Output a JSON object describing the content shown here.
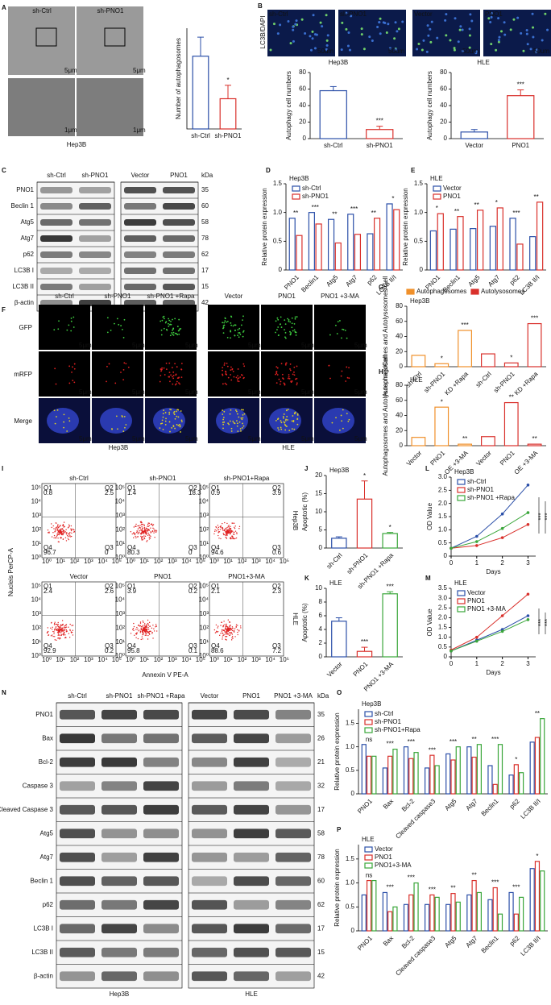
{
  "figure": {
    "panel_letters": [
      "A",
      "B",
      "C",
      "D",
      "E",
      "F",
      "G",
      "H",
      "I",
      "J",
      "K",
      "L",
      "M",
      "N",
      "O",
      "P"
    ],
    "a_images": {
      "scale_top": "5μm",
      "scale_bottom": "1μm",
      "cell": "Hep3B",
      "labels": [
        "sh-Ctrl",
        "sh-PNO1"
      ]
    },
    "b_images": {
      "stain": "LC3B/DAPI",
      "labels": [
        "sh-Ctrl",
        "sh-PNO1",
        "Vector",
        "PNO1"
      ],
      "scale": "50um",
      "cells": [
        "Hep3B",
        "HLE"
      ]
    },
    "blots": [
      {
        "lanes": [
          [
            "sh-Ctrl",
            "sh-PNO1"
          ],
          [
            "Vector",
            "PNO1"
          ]
        ],
        "unit": "kDa",
        "cells": [
          "Hep3B",
          "HLE"
        ],
        "rows": [
          [
            "PNO1",
            "35"
          ],
          [
            "Beclin 1",
            "60"
          ],
          [
            "Atg5",
            "58"
          ],
          [
            "Atg7",
            "78"
          ],
          [
            "p62",
            "62"
          ],
          [
            "LC3B I",
            "17"
          ],
          [
            "LC3B II",
            "15"
          ],
          [
            "β-actin",
            "42"
          ]
        ]
      },
      {
        "lanes": [
          [
            "sh-Ctrl",
            "sh-PNO1",
            "sh-PNO1 +Rapa"
          ],
          [
            "Vector",
            "PNO1",
            "PNO1 +3-MA"
          ]
        ],
        "unit": "kDa",
        "cells": [
          "Hep3B",
          "HLE"
        ],
        "rows": [
          [
            "PNO1",
            "35"
          ],
          [
            "Bax",
            "26"
          ],
          [
            "Bcl-2",
            "21"
          ],
          [
            "Caspase 3",
            "32"
          ],
          [
            "Cleaved Caspase 3",
            "17"
          ],
          [
            "Atg5",
            "58"
          ],
          [
            "Atg7",
            "78"
          ],
          [
            "Beclin 1",
            "60"
          ],
          [
            "p62",
            "62"
          ],
          [
            "LC3B I",
            "17"
          ],
          [
            "LC3B II",
            "15"
          ],
          [
            "β-actin",
            "42"
          ]
        ]
      }
    ],
    "f_images": {
      "columns": [
        "sh-Ctrl",
        "sh-PNO1",
        "sh-PNO1 +Rapa",
        "Vector",
        "PNO1",
        "PNO1 +3-MA"
      ],
      "rows": [
        "GFP",
        "mRFP",
        "Merge"
      ],
      "scale": "5μm",
      "cells": [
        "Hep3B",
        "HLE"
      ]
    },
    "flow": {
      "y_label": "Nucleis PerCP-A",
      "x_label": "Annexin V PE-A",
      "cells": [
        "Hep3B",
        "HLE"
      ],
      "axis_ticks": [
        "10⁰",
        "10¹",
        "10²",
        "10³",
        "10⁴",
        "10⁵"
      ],
      "plots": [
        {
          "title": "sh-Ctrl",
          "q": [
            [
              "Q1",
              "0.8"
            ],
            [
              "Q2",
              "2.5"
            ],
            [
              "Q3",
              "0"
            ],
            [
              "Q4",
              "96.7"
            ]
          ]
        },
        {
          "title": "sh-PNO1",
          "q": [
            [
              "Q1",
              "1.4"
            ],
            [
              "Q2",
              "18.3"
            ],
            [
              "Q3",
              "0"
            ],
            [
              "Q4",
              "80.3"
            ]
          ]
        },
        {
          "title": "sh-PNO1+Rapa",
          "q": [
            [
              "Q1",
              "0.9"
            ],
            [
              "Q2",
              "3.9"
            ],
            [
              "Q3",
              "0.6"
            ],
            [
              "Q4",
              "94.6"
            ]
          ]
        },
        {
          "title": "Vector",
          "q": [
            [
              "Q1",
              "2.4"
            ],
            [
              "Q2",
              "2.6"
            ],
            [
              "Q3",
              "0.2"
            ],
            [
              "Q4",
              "92.9"
            ]
          ]
        },
        {
          "title": "PNO1",
          "q": [
            [
              "Q1",
              "3.9"
            ],
            [
              "Q2",
              "0.2"
            ],
            [
              "Q3",
              "0.1"
            ],
            [
              "Q4",
              "95.8"
            ]
          ]
        },
        {
          "title": "PNO1+3-MA",
          "q": [
            [
              "Q1",
              "2.1"
            ],
            [
              "Q2",
              "2.3"
            ],
            [
              "Q3",
              "7.2"
            ],
            [
              "Q4",
              "88.6"
            ]
          ]
        }
      ]
    }
  },
  "chart_data": [
    {
      "type": "bar",
      "y_label": "Number of autophagosomes",
      "categories": [
        "sh-Ctrl",
        "sh-PNO1"
      ],
      "values": [
        6.5,
        2.7
      ],
      "errors": [
        1.7,
        1.2
      ],
      "colors": [
        "#2b4fa8",
        "#d9302b"
      ],
      "ylim": [
        0,
        9
      ],
      "significance": [
        null,
        "*"
      ]
    },
    {
      "type": "bar",
      "y_label": "Autophagy cell numbers",
      "categories": [
        "sh-Ctrl",
        "sh-PNO1"
      ],
      "values": [
        58,
        11
      ],
      "errors": [
        5,
        4
      ],
      "colors": [
        "#2b4fa8",
        "#d9302b"
      ],
      "ylim": [
        0,
        80
      ],
      "yticks": [
        0,
        20,
        40,
        60,
        80
      ],
      "significance": [
        null,
        "***"
      ]
    },
    {
      "type": "bar",
      "y_label": "Autophagy cell numbers",
      "categories": [
        "Vector",
        "PNO1"
      ],
      "values": [
        8,
        52
      ],
      "errors": [
        3,
        7
      ],
      "colors": [
        "#2b4fa8",
        "#d9302b"
      ],
      "ylim": [
        0,
        80
      ],
      "yticks": [
        0,
        20,
        40,
        60,
        80
      ],
      "significance": [
        null,
        "***"
      ]
    },
    {
      "type": "bar",
      "title": "Hep3B",
      "y_label": "Relative protein expression",
      "categories": [
        "PNO1",
        "Beclin1",
        "Atg5",
        "Atg7",
        "p62",
        "LC3B II/I"
      ],
      "series": [
        {
          "name": "sh-Ctrl",
          "color": "#2b4fa8",
          "values": [
            0.9,
            1.0,
            0.88,
            0.97,
            0.63,
            1.15
          ]
        },
        {
          "name": "sh-PNO1",
          "color": "#d9302b",
          "values": [
            0.6,
            0.8,
            0.47,
            0.62,
            0.9,
            1.05
          ]
        }
      ],
      "ylim": [
        0,
        1.5
      ],
      "yticks": [
        0,
        0.5,
        {
          "value": 1,
          "label": "1.0"
        },
        1.5
      ],
      "significance": [
        "**",
        "***",
        "**",
        "***",
        "**",
        "*"
      ]
    },
    {
      "type": "bar",
      "title": "HLE",
      "y_label": "Relative protein expression",
      "categories": [
        "PNO1",
        "Beclin1",
        "Atg5",
        "Atg7",
        "p62",
        "LC3B II/I"
      ],
      "series": [
        {
          "name": "Vector",
          "color": "#2b4fa8",
          "values": [
            0.68,
            0.71,
            0.72,
            0.76,
            0.9,
            0.58
          ]
        },
        {
          "name": "PNO1",
          "color": "#d9302b",
          "values": [
            0.98,
            0.93,
            1.04,
            1.08,
            0.45,
            1.18
          ]
        }
      ],
      "ylim": [
        0,
        1.5
      ],
      "yticks": [
        0,
        0.5,
        {
          "value": 1,
          "label": "1.0"
        },
        1.5
      ],
      "significance": [
        "*",
        "**",
        "**",
        "*",
        "***",
        "**"
      ]
    },
    {
      "type": "bar",
      "title": "Hep3B",
      "y_label": "Autophagosomes and Autolysosomes/Cell",
      "categories": [
        "sh-Ctrl",
        "sh-PNO1",
        "KD +Rapa",
        "sh-Ctrl",
        "sh-PNO1",
        "KD +Rapa"
      ],
      "series": [
        {
          "name": "Autophagosomes",
          "color": "#f0902a",
          "values": [
            15,
            4,
            48,
            null,
            null,
            null
          ]
        },
        {
          "name": "Autolysosomes",
          "color": "#d9302b",
          "values": [
            null,
            null,
            null,
            17,
            5,
            57
          ]
        }
      ],
      "ylim": [
        0,
        80
      ],
      "yticks": [
        0,
        20,
        40,
        60,
        80
      ],
      "significance": [
        null,
        "*",
        "***",
        null,
        "*",
        "***"
      ]
    },
    {
      "type": "bar",
      "title": "HLE",
      "y_label": "Autophagosomes and Autolysosomes/Cell",
      "categories": [
        "Vector",
        "PNO1",
        "OE +3-MA",
        "Vector",
        "PNO1",
        "OE +3-MA"
      ],
      "series": [
        {
          "color": "#f0902a",
          "values": [
            11,
            51,
            2,
            null,
            null,
            null
          ]
        },
        {
          "color": "#d9302b",
          "values": [
            null,
            null,
            null,
            12,
            57,
            2
          ]
        }
      ],
      "ylim": [
        0,
        80
      ],
      "yticks": [
        0,
        20,
        40,
        60,
        80
      ],
      "significance": [
        null,
        "*",
        "**",
        null,
        "**",
        "**"
      ]
    },
    {
      "type": "bar",
      "title": "Hep3B",
      "y_label": "Apoptotic (%)",
      "categories": [
        "sh-Ctrl",
        "sh-PNO1",
        "sh-PNO1 +Rapa"
      ],
      "values": [
        2.7,
        13.5,
        4
      ],
      "errors": [
        0.4,
        5,
        0.3
      ],
      "colors": [
        "#2b4fa8",
        "#d9302b",
        "#3aa63a"
      ],
      "ylim": [
        0,
        20
      ],
      "yticks": [
        0,
        5,
        10,
        15,
        20
      ],
      "significance": [
        null,
        "*",
        "*"
      ]
    },
    {
      "type": "bar",
      "title": "HLE",
      "y_label": "Apoptotic (%)",
      "categories": [
        "Vector",
        "PNO1",
        "PNO1 +3-MA"
      ],
      "values": [
        5.2,
        0.8,
        9.2
      ],
      "errors": [
        0.5,
        0.6,
        0.3
      ],
      "colors": [
        "#2b4fa8",
        "#d9302b",
        "#3aa63a"
      ],
      "ylim": [
        0,
        10
      ],
      "yticks": [
        0,
        2,
        4,
        6,
        8,
        10
      ],
      "significance": [
        null,
        "***",
        "***"
      ]
    },
    {
      "type": "line",
      "title": "Hep3B",
      "y_label": "OD Value",
      "x_label": "Days",
      "x": [
        0,
        1,
        2,
        3
      ],
      "series": [
        {
          "name": "sh-Ctrl",
          "color": "#2b4fa8",
          "values": [
            0.3,
            0.75,
            1.6,
            2.7
          ]
        },
        {
          "name": "sh-PNO1",
          "color": "#d9302b",
          "values": [
            0.3,
            0.4,
            0.7,
            1.2
          ]
        },
        {
          "name": "sh-PNO1 +Rapa",
          "color": "#3aa63a",
          "values": [
            0.3,
            0.55,
            1.05,
            1.65
          ]
        }
      ],
      "xlim": [
        0,
        3.3
      ],
      "xticks": [
        0,
        1,
        2,
        3
      ],
      "ylim": [
        0,
        3
      ],
      "yticks": [
        0,
        0.5,
        {
          "value": 1,
          "label": "1.0"
        },
        1.5,
        {
          "value": 2,
          "label": "2.0"
        },
        2.5,
        {
          "value": 3,
          "label": "3.0"
        }
      ],
      "significance": [
        "***",
        "***"
      ]
    },
    {
      "type": "line",
      "title": "HLE",
      "y_label": "OD Value",
      "x_label": "Days",
      "x": [
        0,
        1,
        2,
        3
      ],
      "series": [
        {
          "name": "Vector",
          "color": "#2b4fa8",
          "values": [
            0.3,
            0.85,
            1.4,
            2.1
          ]
        },
        {
          "name": "PNO1",
          "color": "#d9302b",
          "values": [
            0.35,
            1.0,
            2.1,
            3.2
          ]
        },
        {
          "name": "PNO1 +3-MA",
          "color": "#3aa63a",
          "values": [
            0.3,
            0.8,
            1.3,
            1.9
          ]
        }
      ],
      "xlim": [
        0,
        3.3
      ],
      "xticks": [
        0,
        1,
        2,
        3
      ],
      "ylim": [
        0,
        3.5
      ],
      "yticks": [
        0,
        0.5,
        {
          "value": 1,
          "label": "1.0"
        },
        1.5,
        {
          "value": 2,
          "label": "2.0"
        },
        2.5,
        {
          "value": 3,
          "label": "3.0"
        },
        3.5
      ],
      "significance": [
        "***",
        "***"
      ]
    },
    {
      "type": "bar",
      "title": "Hep3B",
      "y_label": "Relative protein expression",
      "categories": [
        "PNO1",
        "Bax",
        "Bcl-2",
        "Cleaved caspase3",
        "Atg5",
        "Atg7",
        "Beclin1",
        "p62",
        "LC3B II/I"
      ],
      "series": [
        {
          "name": "sh-Ctrl",
          "color": "#2b4fa8",
          "values": [
            1.05,
            0.55,
            1.0,
            0.55,
            0.85,
            1.0,
            0.6,
            0.4,
            1.1
          ]
        },
        {
          "name": "sh-PNO1",
          "color": "#d9302b",
          "values": [
            0.8,
            0.8,
            0.75,
            0.82,
            0.72,
            0.78,
            0.2,
            0.62,
            1.2
          ]
        },
        {
          "name": "sh-PNO1+Rapa",
          "color": "#3aa63a",
          "values": [
            0.8,
            0.95,
            0.88,
            0.6,
            1.0,
            1.05,
            1.05,
            0.45,
            1.6
          ]
        }
      ],
      "ylim": [
        0,
        1.8
      ],
      "yticks": [
        0,
        0.5,
        {
          "value": 1,
          "label": "1.0"
        },
        1.5
      ],
      "significance": [
        "ns",
        "***",
        "***",
        "***",
        "***",
        "**",
        "***",
        "*",
        "**"
      ]
    },
    {
      "type": "bar",
      "title": "HLE",
      "y_label": "Relative protein expression",
      "categories": [
        "PNO1",
        "Bax",
        "Bcl-2",
        "Cleaved caspase3",
        "Atg5",
        "Atg7",
        "Beclin1",
        "p62",
        "LC3B II/I"
      ],
      "series": [
        {
          "name": "Vector",
          "color": "#2b4fa8",
          "values": [
            0.75,
            0.8,
            0.55,
            0.55,
            0.55,
            0.75,
            0.65,
            0.8,
            1.3
          ]
        },
        {
          "name": "PNO1",
          "color": "#d9302b",
          "values": [
            1.05,
            0.4,
            0.75,
            0.75,
            0.78,
            1.05,
            0.9,
            0.35,
            1.45
          ]
        },
        {
          "name": "PNO1+3-MA",
          "color": "#3aa63a",
          "values": [
            1.05,
            0.5,
            1.0,
            0.7,
            0.6,
            0.8,
            0.35,
            0.7,
            1.25
          ]
        }
      ],
      "ylim": [
        0,
        1.8
      ],
      "yticks": [
        0,
        0.5,
        {
          "value": 1,
          "label": "1.0"
        },
        1.5
      ],
      "significance": [
        "ns",
        "***",
        "***",
        "***",
        "**",
        "**",
        "***",
        "***",
        "*"
      ]
    }
  ]
}
